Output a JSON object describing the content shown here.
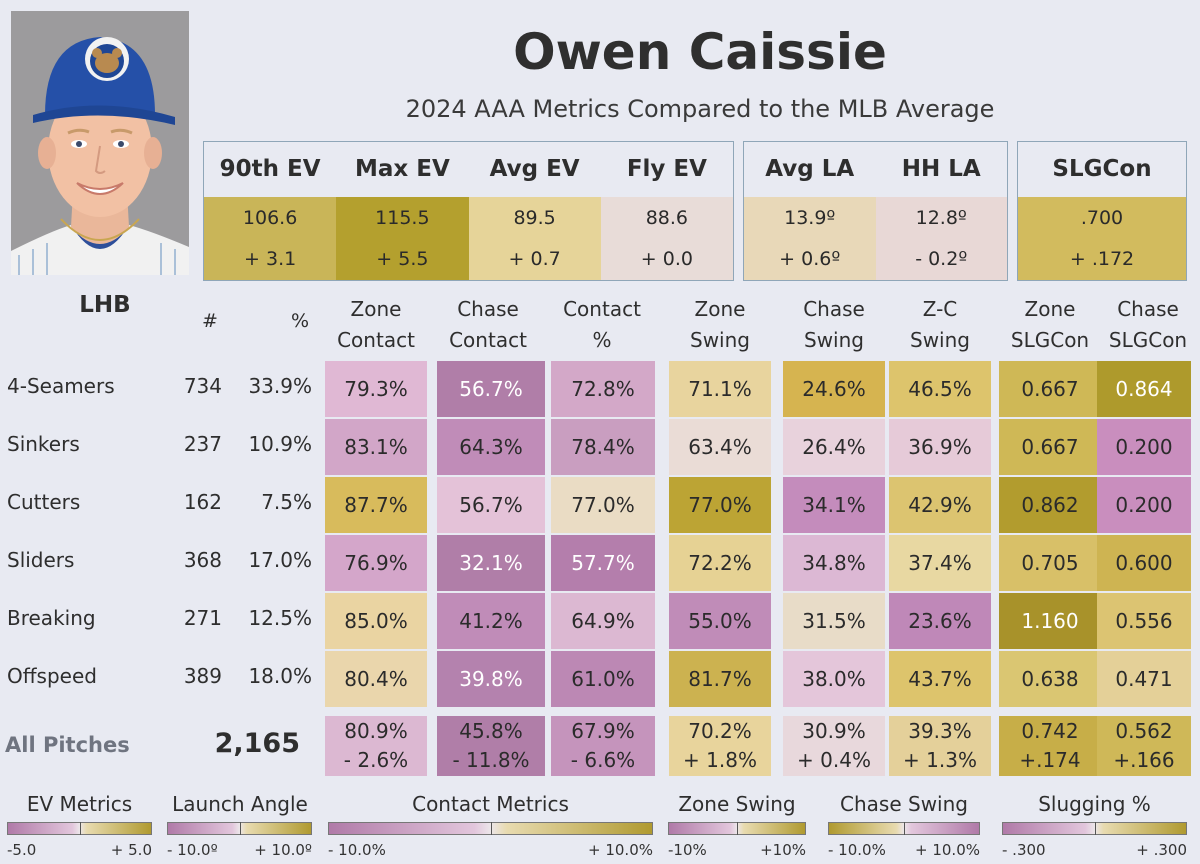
{
  "player": {
    "name": "Owen Caissie",
    "subtitle": "2024 AAA Metrics Compared to the MLB Average",
    "handedness": "LHB"
  },
  "colors": {
    "background": "#e8eaf2",
    "gold": "#b09a30",
    "purple": "#b07aa8",
    "neutral": "#e8dad8"
  },
  "summary": {
    "ev_box": [
      {
        "label": "90th EV",
        "value": "106.6",
        "diff": "+ 3.1",
        "color": "#c9b558"
      },
      {
        "label": "Max EV",
        "value": "115.5",
        "diff": "+ 5.5",
        "color": "#b4a02e"
      },
      {
        "label": "Avg EV",
        "value": "89.5",
        "diff": "+ 0.7",
        "color": "#e6d499"
      },
      {
        "label": "Fly EV",
        "value": "88.6",
        "diff": "+ 0.0",
        "color": "#e8dcd8"
      }
    ],
    "la_box": [
      {
        "label": "Avg LA",
        "value": "13.9º",
        "diff": "+ 0.6º",
        "color": "#e8d8b8"
      },
      {
        "label": "HH LA",
        "value": "12.8º",
        "diff": "- 0.2º",
        "color": "#e8d8d6"
      }
    ],
    "slg_box": [
      {
        "label": "SLGCon",
        "value": ".700",
        "diff": "+ .172",
        "color": "#d2bb5e"
      }
    ]
  },
  "table": {
    "header_count": "#",
    "header_pct": "%",
    "columns": [
      [
        "Zone",
        "Contact"
      ],
      [
        "Chase",
        "Contact"
      ],
      [
        "Contact",
        "%"
      ],
      [
        "Zone",
        "Swing"
      ],
      [
        "Chase",
        "Swing"
      ],
      [
        "Z-C",
        "Swing"
      ],
      [
        "Zone",
        "SLGCon"
      ],
      [
        "Chase",
        "SLGCon"
      ]
    ],
    "rows": [
      {
        "label": "4-Seamers",
        "count": "734",
        "pct": "33.9%",
        "cells": [
          "79.3%",
          "56.7%",
          "72.8%",
          "71.1%",
          "24.6%",
          "46.5%",
          "0.667",
          "0.864"
        ],
        "colors": [
          "#e0b8d4",
          "#b07ea8",
          "#d3a8c8",
          "#e8d49e",
          "#d6b450",
          "#ddc46c",
          "#cfb856",
          "#ae9a2c"
        ]
      },
      {
        "label": "Sinkers",
        "count": "237",
        "pct": "10.9%",
        "cells": [
          "83.1%",
          "64.3%",
          "78.4%",
          "63.4%",
          "26.4%",
          "36.9%",
          "0.667",
          "0.200"
        ],
        "colors": [
          "#d2a6c8",
          "#c08cb8",
          "#c99ec0",
          "#eadcd6",
          "#e8d2dc",
          "#e6cad8",
          "#cfb856",
          "#c98ebe"
        ]
      },
      {
        "label": "Cutters",
        "count": "162",
        "pct": "7.5%",
        "cells": [
          "87.7%",
          "56.7%",
          "77.0%",
          "77.0%",
          "34.1%",
          "42.9%",
          "0.862",
          "0.200"
        ],
        "colors": [
          "#d8bb5c",
          "#e4c2d8",
          "#eadcc4",
          "#bca434",
          "#c48cbc",
          "#dcc470",
          "#b29c2e",
          "#c98ebe"
        ]
      },
      {
        "label": "Sliders",
        "count": "368",
        "pct": "17.0%",
        "cells": [
          "76.9%",
          "32.1%",
          "57.7%",
          "72.2%",
          "34.8%",
          "37.4%",
          "0.705",
          "0.600"
        ],
        "colors": [
          "#d4a6ca",
          "#b07ea8",
          "#b47eac",
          "#e6d294",
          "#dcb8d4",
          "#e8d8a2",
          "#d8c068",
          "#ceb452"
        ]
      },
      {
        "label": "Breaking",
        "count": "271",
        "pct": "12.5%",
        "cells": [
          "85.0%",
          "41.2%",
          "64.9%",
          "55.0%",
          "31.5%",
          "23.6%",
          "1.160",
          "0.556"
        ],
        "colors": [
          "#ead4a2",
          "#c08cb8",
          "#dcb8d2",
          "#c08cb8",
          "#e8dcc8",
          "#bf88b8",
          "#a8922a",
          "#dcc472"
        ]
      },
      {
        "label": "Offspeed",
        "count": "389",
        "pct": "18.0%",
        "cells": [
          "80.4%",
          "39.8%",
          "61.0%",
          "81.7%",
          "38.0%",
          "43.7%",
          "0.638",
          "0.471"
        ],
        "colors": [
          "#ead6ac",
          "#b482ae",
          "#bc88b4",
          "#ccb250",
          "#e4c6da",
          "#ddc46c",
          "#dac672",
          "#e4d098"
        ]
      }
    ],
    "total": {
      "label": "All Pitches",
      "count": "2,165",
      "cells": [
        [
          "80.9%",
          "- 2.6%"
        ],
        [
          "45.8%",
          "- 11.8%"
        ],
        [
          "67.9%",
          "- 6.6%"
        ],
        [
          "70.2%",
          "+ 1.8%"
        ],
        [
          "30.9%",
          "+ 0.4%"
        ],
        [
          "39.3%",
          "+ 1.3%"
        ],
        [
          "0.742",
          "+.174"
        ],
        [
          "0.562",
          "+.166"
        ]
      ],
      "colors": [
        "#dcb8d2",
        "#b07ea8",
        "#c594bc",
        "#e8d49c",
        "#e8d8dc",
        "#e4d09a",
        "#c7ae48",
        "#cfb858"
      ]
    }
  },
  "legends": [
    {
      "title": "EV Metrics",
      "min": "-5.0",
      "max": "+ 5.0",
      "gradient": "purple-gold"
    },
    {
      "title": "Launch Angle",
      "min": "- 10.0º",
      "max": "+ 10.0º",
      "gradient": "purple-gold"
    },
    {
      "title": "Contact Metrics",
      "min": "- 10.0%",
      "max": "+ 10.0%",
      "gradient": "purple-gold"
    },
    {
      "title": "Zone Swing",
      "min": "-10%",
      "max": "+10%",
      "gradient": "purple-gold"
    },
    {
      "title": "Chase Swing",
      "min": "- 10.0%",
      "max": "+ 10.0%",
      "gradient": "gold-purple"
    },
    {
      "title": "Slugging %",
      "min": "- .300",
      "max": "+ .300",
      "gradient": "purple-gold"
    }
  ]
}
